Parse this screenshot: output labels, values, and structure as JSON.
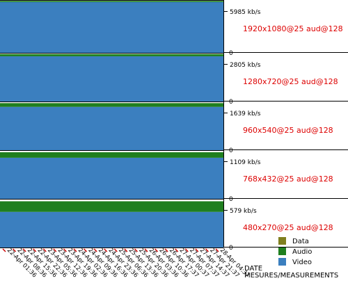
{
  "chart_data": {
    "type": "area",
    "stacked": true,
    "xlabel": "DATE",
    "xlabel2": "MESURES/MEASUREMENTS",
    "x": [
      "22-Apr 01:36",
      "22-Apr 08:36",
      "22-Apr 15:36",
      "22-Apr 22:36",
      "23-Apr 05:36",
      "23-Apr 12:36",
      "23-Apr 19:36",
      "24-Apr 02:36",
      "24-Apr 09:36",
      "24-Apr 16:36",
      "24-Apr 23:36",
      "25-Apr 06:36",
      "25-Apr 13:36",
      "25-Apr 20:36",
      "26-Apr 03:36",
      "26-Apr 10:36",
      "26-Apr 17:37",
      "27-Apr 00:37",
      "27-Apr 07:37",
      "27-Apr 14:37",
      "27-Apr 21:37",
      "28-Apr 04:37"
    ],
    "x_labels": [
      "22-Apr 01:36",
      "22-Apr 08:36",
      "22-Apr 15:36",
      "22-Apr 22:36",
      "23-Apr 05:36",
      "23-Apr 12:36",
      "23-Apr 19:36",
      "24-Apr 02:36",
      "24-Apr 09:36",
      "24-Apr 16:36",
      "24-Apr 23:36",
      "25-Apr 06:36",
      "25-Apr 13:36",
      "25-Apr 20:36",
      "26-Apr 03:36",
      "26-Apr 10:36",
      "26-Apr 17:37",
      "27-Apr 00:37",
      "27-Apr 07:37",
      "27-Apr 14:37",
      "27-Apr 21:37",
      "28-Apr 04:37"
    ],
    "legend": {
      "placement": "bottom-right",
      "entries": [
        {
          "name": "Data",
          "color": "#7f7f1f"
        },
        {
          "name": "Audio",
          "color": "#1f7f1f"
        },
        {
          "name": "Video",
          "color": "#3b7fbf"
        }
      ]
    },
    "panels": [
      {
        "label": "1920x1080@25 aud@128",
        "ymax": 5985,
        "ymax_label": "5985 kb/s",
        "zero_label": "0",
        "video": 5825,
        "audio": 128,
        "data": 0
      },
      {
        "label": "1280x720@25 aud@128",
        "ymax": 2805,
        "ymax_label": "2805 kb/s",
        "zero_label": "0",
        "video": 2645,
        "audio": 128,
        "data": 0
      },
      {
        "label": "960x540@25 aud@128",
        "ymax": 1639,
        "ymax_label": "1639 kb/s",
        "zero_label": "0",
        "video": 1480,
        "audio": 128,
        "data": 0
      },
      {
        "label": "768x432@25 aud@128",
        "ymax": 1109,
        "ymax_label": "1109 kb/s",
        "zero_label": "0",
        "video": 950,
        "audio": 128,
        "data": 0
      },
      {
        "label": "480x270@25 aud@128",
        "ymax": 579,
        "ymax_label": "579 kb/s",
        "zero_label": "0",
        "video": 430,
        "audio": 128,
        "data": 0
      }
    ]
  },
  "colors": {
    "video": "#3b7fbf",
    "audio": "#1f7f1f",
    "data": "#7f7f1f",
    "label": "#dd0000",
    "axis": "#000000",
    "marker": "#cc0000"
  }
}
